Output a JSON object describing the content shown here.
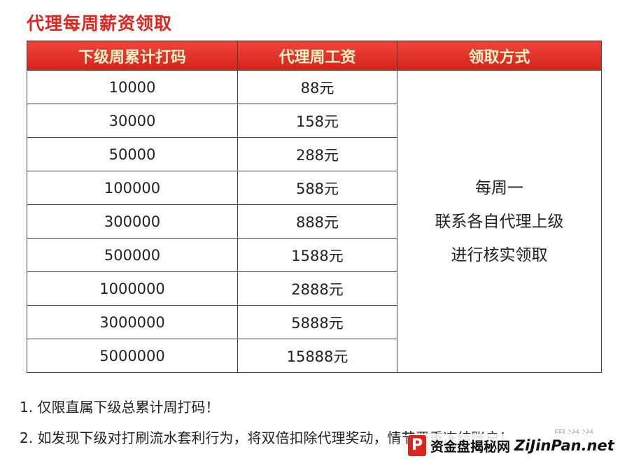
{
  "header": {
    "title": "代理每周薪资领取"
  },
  "table": {
    "columns": [
      "下级周累计打码",
      "代理周工资",
      "领取方式"
    ],
    "rows": [
      [
        "10000",
        "88元"
      ],
      [
        "30000",
        "158元"
      ],
      [
        "50000",
        "288元"
      ],
      [
        "100000",
        "588元"
      ],
      [
        "300000",
        "888元"
      ],
      [
        "500000",
        "1588元"
      ],
      [
        "1000000",
        "2888元"
      ],
      [
        "3000000",
        "5888元"
      ],
      [
        "5000000",
        "15888元"
      ]
    ],
    "method": [
      "每周一",
      "联系各自代理上级",
      "进行核实领取"
    ]
  },
  "notes": [
    "1. 仅限直属下级总累计周打码！",
    "2. 如发现下级对打刷流水套利行为，将双倍扣除代理奖动，情节严重冻结账户！"
  ],
  "watermark": {
    "logo": "P",
    "site": "资金盘揭秘网",
    "domain": "ZiJinPan.net",
    "faint": "界说说"
  }
}
